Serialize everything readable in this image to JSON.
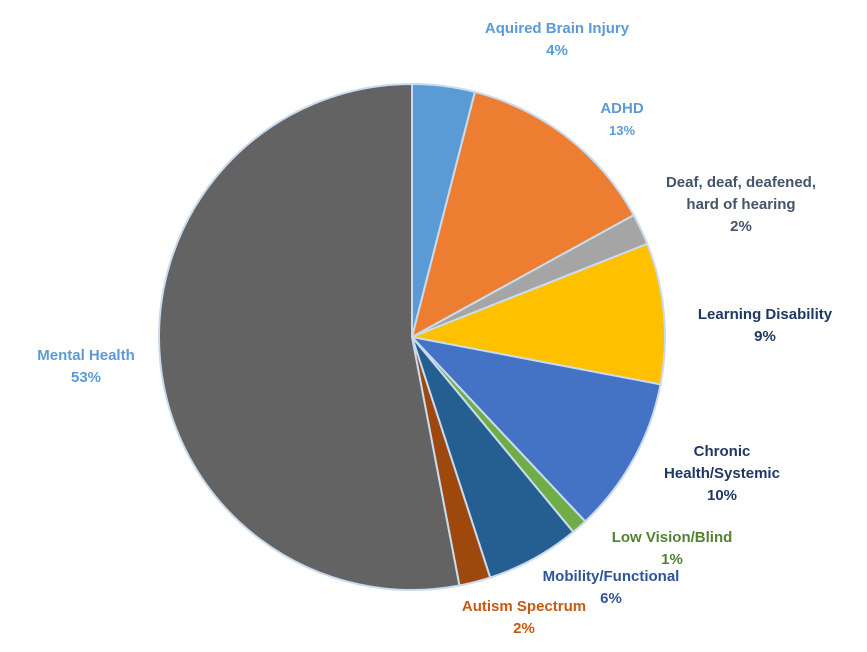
{
  "chart_data": {
    "type": "pie",
    "title": "",
    "slices": [
      {
        "label": "Aquired Brain Injury",
        "value": 4,
        "pct_label": "4%",
        "color": "#5b9bd5",
        "label_color": "#5b9bd5"
      },
      {
        "label": "ADHD",
        "value": 13,
        "pct_label": "13%",
        "color": "#ed7d31",
        "label_color": "#5b9bd5"
      },
      {
        "label": "Deaf, deaf, deafened, hard of hearing",
        "label_lines": [
          "Deaf, deaf, deafened,",
          "hard of hearing"
        ],
        "value": 2,
        "pct_label": "2%",
        "color": "#a5a5a5",
        "label_color": "#44546a"
      },
      {
        "label": "Learning Disability",
        "value": 9,
        "pct_label": "9%",
        "color": "#ffc000",
        "label_color": "#1f3864"
      },
      {
        "label": "Chronic Health/Systemic",
        "label_lines": [
          "Chronic",
          "Health/Systemic"
        ],
        "value": 10,
        "pct_label": "10%",
        "color": "#4472c4",
        "label_color": "#1f3864"
      },
      {
        "label": "Low Vision/Blind",
        "value": 1,
        "pct_label": "1%",
        "color": "#70ad47",
        "label_color": "#548235"
      },
      {
        "label": "Mobility/Functional",
        "value": 6,
        "pct_label": "6%",
        "color": "#255e91",
        "label_color": "#2f5597"
      },
      {
        "label": "Autism Spectrum",
        "value": 2,
        "pct_label": "2%",
        "color": "#9e480e",
        "label_color": "#c55a11"
      },
      {
        "label": "Mental Health",
        "value": 53,
        "pct_label": "53%",
        "color": "#636363",
        "label_color": "#5b9bd5"
      }
    ],
    "start_angle_deg": 0,
    "direction": "clockwise",
    "legend": "none"
  }
}
